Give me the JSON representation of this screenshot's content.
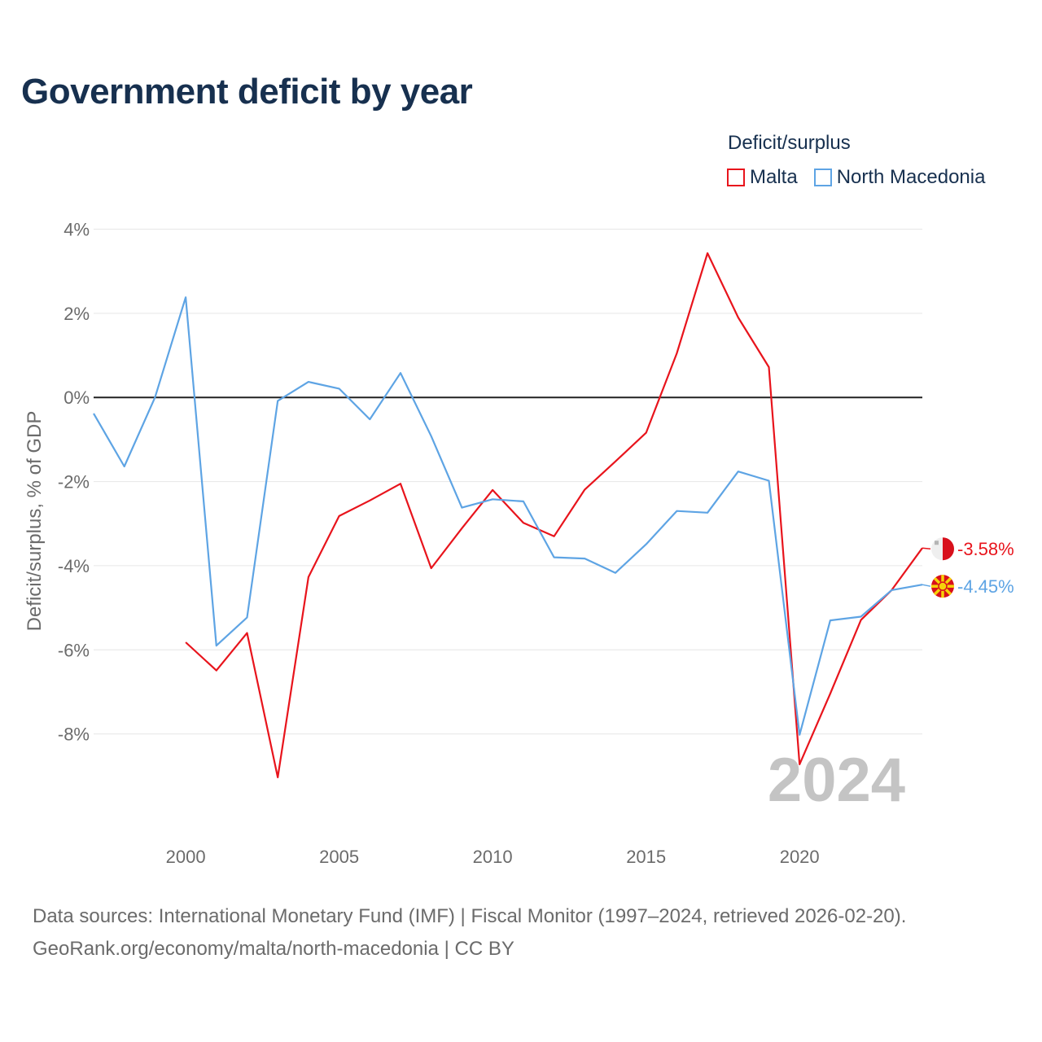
{
  "title": "Government deficit by year",
  "legend": {
    "title": "Deficit/surplus",
    "items": [
      {
        "name": "Malta",
        "color": "#e8141c"
      },
      {
        "name": "North Macedonia",
        "color": "#5ea4e4"
      }
    ]
  },
  "watermark_year": "2024",
  "footer": {
    "line1": "Data sources: International Monetary Fund (IMF) | Fiscal Monitor (1997–2024, retrieved 2026-02-20).",
    "line2": "GeoRank.org/economy/malta/north-macedonia | CC BY"
  },
  "chart_data": {
    "type": "line",
    "title": "Government deficit by year",
    "xlabel": "",
    "ylabel": "Deficit/surplus, % of GDP",
    "xlim": [
      1997,
      2024
    ],
    "ylim": [
      -10,
      4.3
    ],
    "x_ticks": [
      2000,
      2005,
      2010,
      2015,
      2020
    ],
    "y_ticks": [
      4,
      2,
      0,
      -2,
      -4,
      -6,
      -8
    ],
    "y_tick_labels": [
      "4%",
      "2%",
      "0%",
      "-2%",
      "-4%",
      "-6%",
      "-8%"
    ],
    "grid": true,
    "legend_position": "top-right",
    "series": [
      {
        "name": "Malta",
        "color": "#e8141c",
        "end_label": "-3.58%",
        "points": [
          [
            2000,
            -5.82
          ],
          [
            2001,
            -6.49
          ],
          [
            2002,
            -5.6
          ],
          [
            2003,
            -9.03
          ],
          [
            2004,
            -4.27
          ],
          [
            2005,
            -2.82
          ],
          [
            2006,
            -2.45
          ],
          [
            2007,
            -2.05
          ],
          [
            2008,
            -4.06
          ],
          [
            2009,
            -3.11
          ],
          [
            2010,
            -2.2
          ],
          [
            2011,
            -2.98
          ],
          [
            2012,
            -3.3
          ],
          [
            2013,
            -2.19
          ],
          [
            2014,
            -1.52
          ],
          [
            2015,
            -0.84
          ],
          [
            2016,
            1.05
          ],
          [
            2017,
            3.43
          ],
          [
            2018,
            1.9
          ],
          [
            2019,
            0.72
          ],
          [
            2020,
            -8.72
          ],
          [
            2021,
            -7.04
          ],
          [
            2022,
            -5.29
          ],
          [
            2023,
            -4.58
          ],
          [
            2024,
            -3.58
          ]
        ]
      },
      {
        "name": "North Macedonia",
        "color": "#5ea4e4",
        "end_label": "-4.45%",
        "points": [
          [
            1997,
            -0.38
          ],
          [
            1998,
            -1.64
          ],
          [
            1999,
            0.0
          ],
          [
            2000,
            2.38
          ],
          [
            2001,
            -5.9
          ],
          [
            2002,
            -5.23
          ],
          [
            2003,
            -0.08
          ],
          [
            2004,
            0.37
          ],
          [
            2005,
            0.21
          ],
          [
            2006,
            -0.52
          ],
          [
            2007,
            0.58
          ],
          [
            2008,
            -0.92
          ],
          [
            2009,
            -2.62
          ],
          [
            2010,
            -2.42
          ],
          [
            2011,
            -2.47
          ],
          [
            2012,
            -3.8
          ],
          [
            2013,
            -3.83
          ],
          [
            2014,
            -4.17
          ],
          [
            2015,
            -3.49
          ],
          [
            2016,
            -2.7
          ],
          [
            2017,
            -2.74
          ],
          [
            2018,
            -1.76
          ],
          [
            2019,
            -1.98
          ],
          [
            2020,
            -8.02
          ],
          [
            2021,
            -5.3
          ],
          [
            2022,
            -5.21
          ],
          [
            2023,
            -4.58
          ],
          [
            2024,
            -4.45
          ]
        ]
      }
    ]
  }
}
